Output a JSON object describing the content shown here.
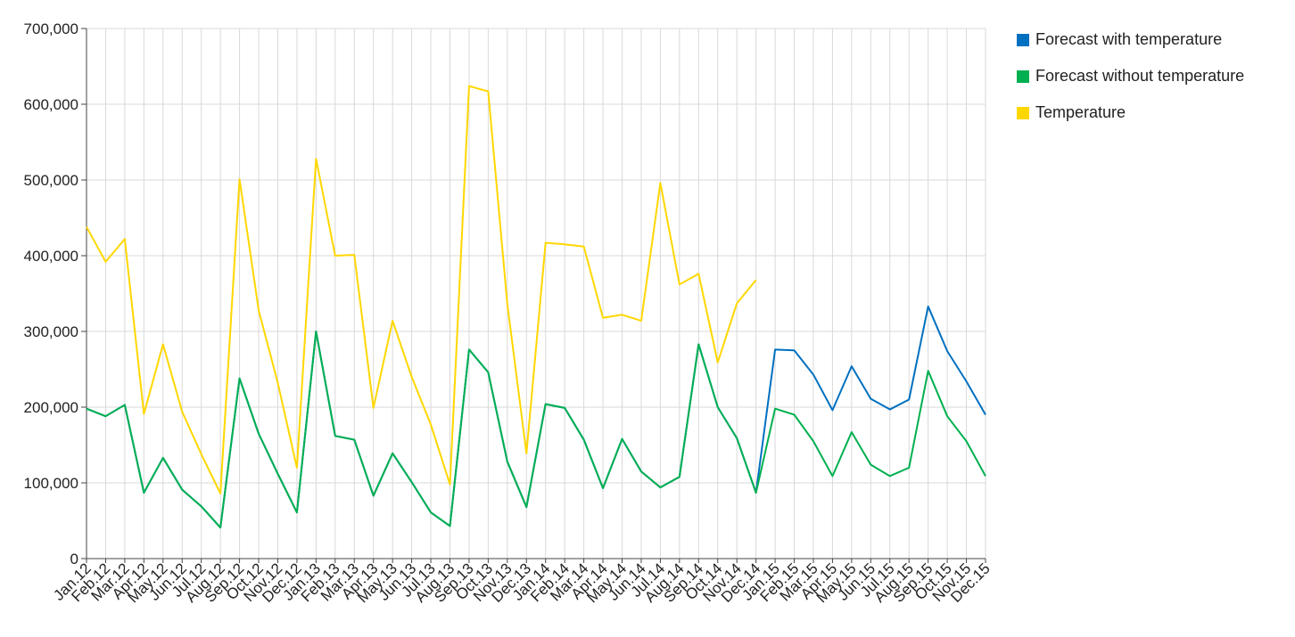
{
  "chart_data": {
    "type": "line",
    "title": "",
    "xlabel": "",
    "ylabel": "",
    "ylim": [
      0,
      700000
    ],
    "y_ticks": [
      0,
      100000,
      200000,
      300000,
      400000,
      500000,
      600000,
      700000
    ],
    "y_tick_labels": [
      "0",
      "100,000",
      "200,000",
      "300,000",
      "400,000",
      "500,000",
      "600,000",
      "700,000"
    ],
    "grid": true,
    "legend_position": "top-right",
    "categories": [
      "Jan.12",
      "Feb.12",
      "Mar.12",
      "Apr.12",
      "May.12",
      "Jun.12",
      "Jul.12",
      "Aug.12",
      "Sep.12",
      "Oct.12",
      "Nov.12",
      "Dec.12",
      "Jan.13",
      "Feb.13",
      "Mar.13",
      "Apr.13",
      "May.13",
      "Jun.13",
      "Jul.13",
      "Aug.13",
      "Sep.13",
      "Oct.13",
      "Nov.13",
      "Dec.13",
      "Jan.14",
      "Feb.14",
      "Mar.14",
      "Apr.14",
      "May.14",
      "Jun.14",
      "Jul.14",
      "Aug.14",
      "Sep.14",
      "Oct.14",
      "Nov.14",
      "Dec.14",
      "Jan.15",
      "Feb.15",
      "Mar.15",
      "Apr.15",
      "May.15",
      "Jun.15",
      "Jul.15",
      "Aug.15",
      "Sep.15",
      "Oct.15",
      "Nov.15",
      "Dec.15"
    ],
    "series": [
      {
        "name": "Forecast with temperature",
        "color": "#0070c0",
        "values": [
          198000,
          188000,
          203000,
          87000,
          133000,
          91000,
          69000,
          41000,
          238000,
          165000,
          112000,
          61000,
          300000,
          162000,
          157000,
          83000,
          139000,
          101000,
          61000,
          43000,
          276000,
          246000,
          128000,
          68000,
          204000,
          199000,
          157000,
          93000,
          158000,
          115000,
          94000,
          108000,
          283000,
          200000,
          159000,
          87000,
          276000,
          275000,
          243000,
          196000,
          254000,
          211000,
          197000,
          210000,
          333000,
          274000,
          234000,
          190000
        ]
      },
      {
        "name": "Forecast without temperature",
        "color": "#00b050",
        "values": [
          198000,
          188000,
          203000,
          87000,
          133000,
          91000,
          69000,
          41000,
          238000,
          165000,
          112000,
          61000,
          300000,
          162000,
          157000,
          83000,
          139000,
          101000,
          61000,
          43000,
          276000,
          246000,
          128000,
          68000,
          204000,
          199000,
          157000,
          93000,
          158000,
          115000,
          94000,
          108000,
          283000,
          200000,
          159000,
          87000,
          198000,
          190000,
          155000,
          109000,
          167000,
          124000,
          109000,
          120000,
          248000,
          188000,
          155000,
          109000
        ]
      },
      {
        "name": "Temperature",
        "color": "#ffd700",
        "values": [
          438000,
          392000,
          422000,
          191000,
          283000,
          194000,
          138000,
          86000,
          501000,
          328000,
          232000,
          120000,
          528000,
          400000,
          401000,
          199000,
          314000,
          240000,
          177000,
          98000,
          624000,
          617000,
          336000,
          139000,
          417000,
          415000,
          412000,
          318000,
          322000,
          314000,
          496000,
          362000,
          376000,
          259000,
          337000,
          368000,
          null,
          null,
          null,
          null,
          null,
          null,
          null,
          null,
          null,
          null,
          null,
          null
        ]
      }
    ]
  }
}
